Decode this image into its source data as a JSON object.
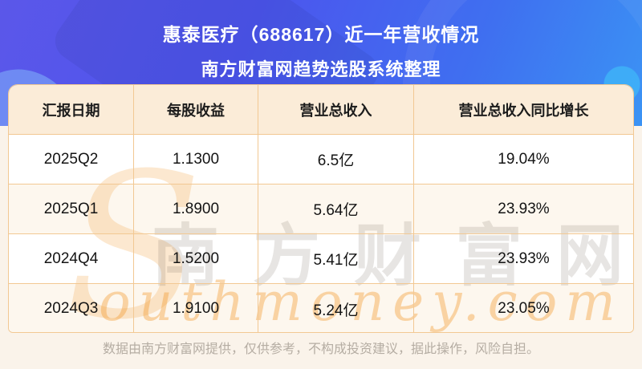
{
  "title": {
    "line1": "惠泰医疗（688617）近一年营收情况",
    "line2": "南方财富网趋势选股系统整理"
  },
  "table": {
    "headers": [
      "汇报日期",
      "每股收益",
      "营业总收入",
      "营业总收入同比增长"
    ],
    "rows": [
      [
        "2025Q2",
        "1.1300",
        "6.5亿",
        "19.04%"
      ],
      [
        "2025Q1",
        "1.8900",
        "5.64亿",
        "23.93%"
      ],
      [
        "2024Q4",
        "1.5200",
        "5.41亿",
        "23.93%"
      ],
      [
        "2024Q3",
        "1.9100",
        "5.24亿",
        "23.05%"
      ]
    ]
  },
  "watermark": {
    "initial": "S",
    "cn": "南方财富网",
    "en": "outhmoney.com"
  },
  "footer": {
    "disclaimer": "数据由南方财富网提供，仅供参考，不构成投资建议，据此操作，风险自担。"
  },
  "colors": {
    "banner_indigo": "#4c55ee",
    "banner_blue": "#3b93f4",
    "table_border": "#f2c893",
    "header_bg": "#fbecd8",
    "row_cream_bg": "#fdf7ee",
    "page_cream_bg": "#faf3ea",
    "footer_text": "#b5ada3",
    "watermark_peach": "#f9d6a4"
  },
  "chart_data": {
    "type": "table",
    "title": "惠泰医疗（688617）近一年营收情况",
    "subtitle": "南方财富网趋势选股系统整理",
    "columns": [
      "汇报日期",
      "每股收益",
      "营业总收入",
      "营业总收入同比增长"
    ],
    "categories": [
      "2025Q2",
      "2025Q1",
      "2024Q4",
      "2024Q3"
    ],
    "series": [
      {
        "name": "每股收益",
        "values": [
          1.13,
          1.89,
          1.52,
          1.91
        ]
      },
      {
        "name": "营业总收入(亿)",
        "values": [
          6.5,
          5.64,
          5.41,
          5.24
        ]
      },
      {
        "name": "营业总收入同比增长(%)",
        "values": [
          19.04,
          23.93,
          23.93,
          23.05
        ]
      }
    ],
    "rows": [
      [
        "2025Q2",
        "1.1300",
        "6.5亿",
        "19.04%"
      ],
      [
        "2025Q1",
        "1.8900",
        "5.64亿",
        "23.93%"
      ],
      [
        "2024Q4",
        "1.5200",
        "5.41亿",
        "23.93%"
      ],
      [
        "2024Q3",
        "1.9100",
        "5.24亿",
        "23.05%"
      ]
    ]
  }
}
